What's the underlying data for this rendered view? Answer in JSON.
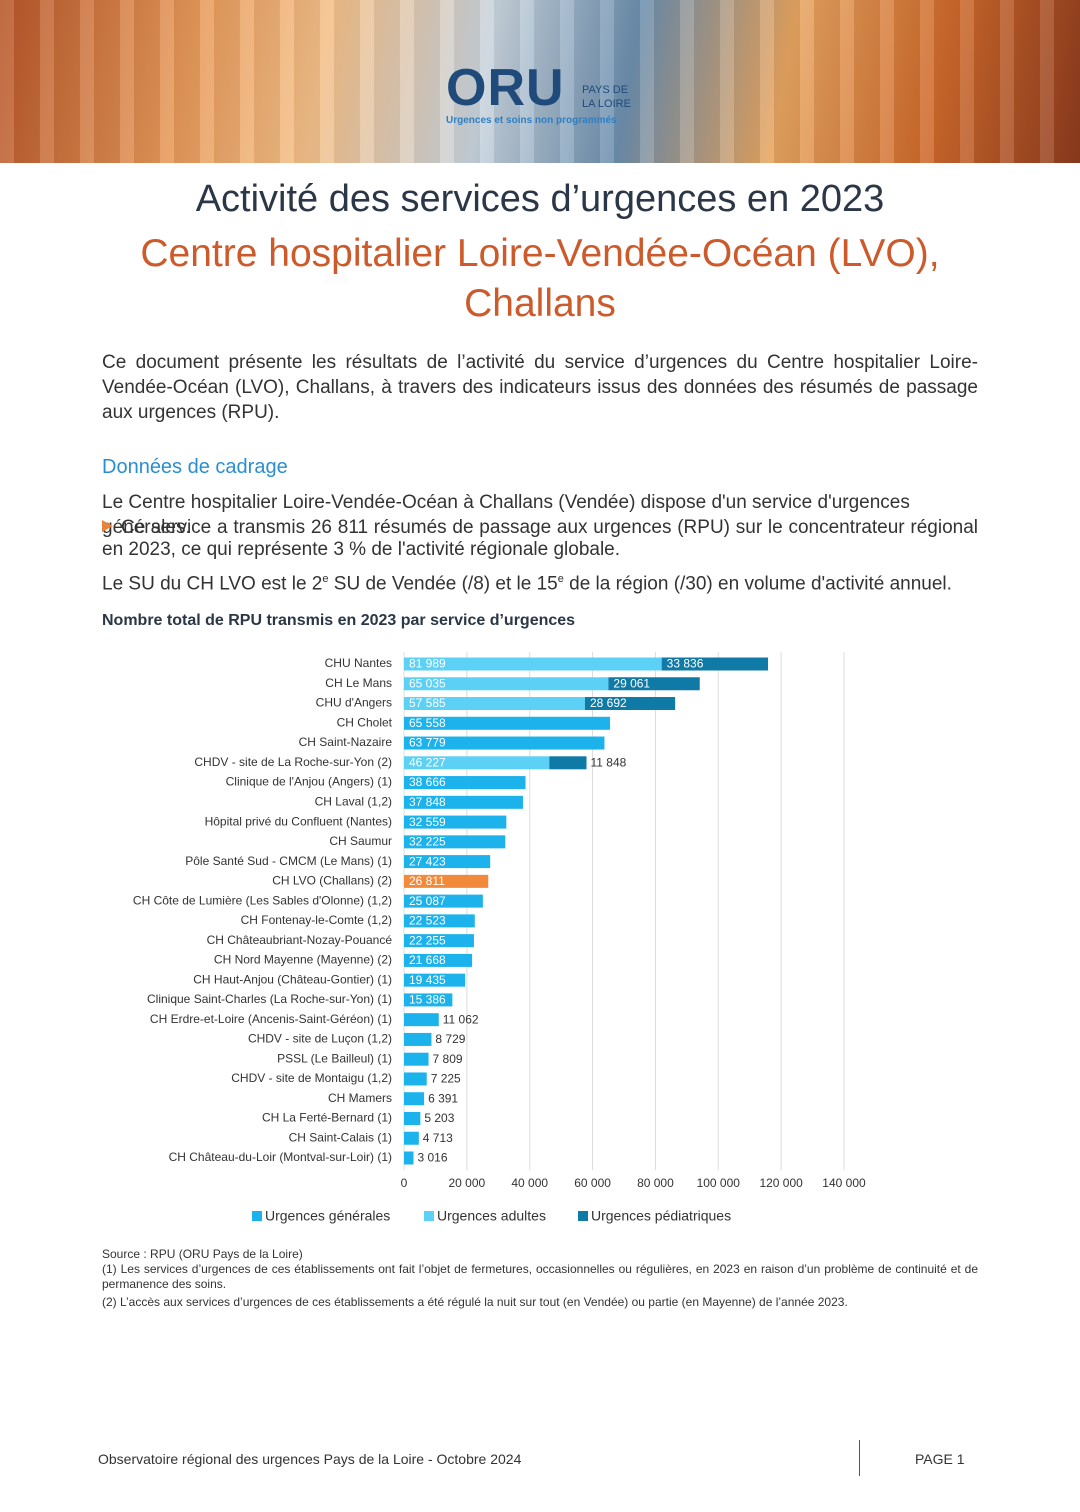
{
  "header": {
    "logo": "ORU",
    "logo_line1": "PAYS DE",
    "logo_line2": "LA LOIRE",
    "tagline": "Urgences et soins non programmés"
  },
  "title": "Activité des services d’urgences en 2023",
  "subtitle_line1": "Centre hospitalier Loire-Vendée-Océan (LVO),",
  "subtitle_line2": "Challans",
  "intro": "Ce document présente les résultats de l’activité du service d’urgences du Centre hospitalier Loire-Vendée-Océan (LVO), Challans, à travers des indicateurs issus des données des résumés de passage aux urgences (RPU).",
  "section_heading": "Données de cadrage",
  "paragraph_1": "Le Centre hospitalier Loire-Vendée-Océan à Challans (Vendée) dispose d'un service d'urgences générales.",
  "paragraph_2": "Ce service a transmis 26 811 résumés de passage aux urgences (RPU) sur le concentrateur régional en 2023, ce qui représente 3 % de l'activité régionale globale.",
  "paragraph_3": [
    "Le SU du CH LVO est le 2",
    "e",
    " SU de Vendée (/8) et le 15",
    "e",
    " de la région (/30) en volume d'activité annuel."
  ],
  "chart_data": {
    "type": "stacked-hbar",
    "title": "Nombre total de RPU transmis en 2023 par service d’urgences",
    "categories": [
      "CHU Nantes",
      "CH Le Mans",
      "CHU d'Angers",
      "CH Cholet",
      "CH Saint-Nazaire",
      "CHDV - site de La Roche-sur-Yon (2)",
      "Clinique de l'Anjou (Angers) (1)",
      "CH Laval (1,2)",
      "Hôpital privé du Confluent (Nantes)",
      "CH Saumur",
      "Pôle Santé Sud - CMCM (Le Mans) (1)",
      "CH LVO (Challans) (2)",
      "CH Côte de Lumière (Les Sables d'Olonne) (1,2)",
      "CH Fontenay-le-Comte (1,2)",
      "CH Châteaubriant-Nozay-Pouancé",
      "CH Nord Mayenne (Mayenne) (2)",
      "CH Haut-Anjou (Château-Gontier) (1)",
      "Clinique Saint-Charles (La Roche-sur-Yon) (1)",
      "CH Erdre-et-Loire (Ancenis-Saint-Géréon) (1)",
      "CHDV - site de Luçon (1,2)",
      "PSSL (Le Bailleul) (1)",
      "CHDV - site de Montaigu (1,2)",
      "CH Mamers",
      "CH La Ferté-Bernard (1)",
      "CH Saint-Calais (1)",
      "CH Château-du-Loir (Montval-sur-Loir) (1)"
    ],
    "series": [
      {
        "name": "Urgences générales",
        "color": "#1cb2ec",
        "values": [
          null,
          null,
          null,
          65558,
          63779,
          null,
          38666,
          37848,
          32559,
          32225,
          27423,
          26811,
          25087,
          22523,
          22255,
          21668,
          19435,
          15386,
          11062,
          8729,
          7809,
          7225,
          6391,
          5203,
          4713,
          3016
        ],
        "value_labels": [
          null,
          null,
          null,
          "65 558",
          "63 779",
          null,
          "38 666",
          "37 848",
          "32 559",
          "32 225",
          "27 423",
          "26 811",
          "25 087",
          "22 523",
          "22 255",
          "21 668",
          "19 435",
          "15 386",
          "11 062",
          "8 729",
          "7 809",
          "7 225",
          "6 391",
          "5 203",
          "4 713",
          "3 016"
        ]
      },
      {
        "name": "Urgences adultes",
        "color": "#5dd0f6",
        "values": [
          81989,
          65035,
          57585,
          null,
          null,
          46227,
          null,
          null,
          null,
          null,
          null,
          null,
          null,
          null,
          null,
          null,
          null,
          null,
          null,
          null,
          null,
          null,
          null,
          null,
          null,
          null
        ],
        "value_labels": [
          "81 989",
          "65 035",
          "57 585",
          null,
          null,
          "46 227",
          null,
          null,
          null,
          null,
          null,
          null,
          null,
          null,
          null,
          null,
          null,
          null,
          null,
          null,
          null,
          null,
          null,
          null,
          null,
          null
        ]
      },
      {
        "name": "Urgences pédiatriques",
        "color": "#0f7aa6",
        "values": [
          33836,
          29061,
          28692,
          null,
          null,
          11848,
          null,
          null,
          null,
          null,
          null,
          null,
          null,
          null,
          null,
          null,
          null,
          null,
          null,
          null,
          null,
          null,
          null,
          null,
          null,
          null
        ],
        "value_labels": [
          "33 836",
          "29 061",
          "28 692",
          null,
          null,
          "11 848",
          null,
          null,
          null,
          null,
          null,
          null,
          null,
          null,
          null,
          null,
          null,
          null,
          null,
          null,
          null,
          null,
          null,
          null,
          null,
          null
        ]
      }
    ],
    "highlight": {
      "category": "CH LVO (Challans) (2)",
      "color": "#f28a3c"
    },
    "xlim": [
      0,
      140000
    ],
    "xticks": [
      0,
      {
        "value": 20000,
        "label": "20 000"
      },
      {
        "value": 40000,
        "label": "40 000"
      },
      {
        "value": 60000,
        "label": "60 000"
      },
      {
        "value": 80000,
        "label": "80 000"
      },
      {
        "value": 100000,
        "label": "100 000"
      },
      {
        "value": 120000,
        "label": "120 000"
      },
      {
        "value": 140000,
        "label": "140 000"
      }
    ],
    "grid": true,
    "legend": "bottom"
  },
  "notes": {
    "source": "Source : RPU (ORU Pays de la Loire)",
    "note_1": "(1) Les services d’urgences de ces établissements ont fait l’objet de fermetures, occasionnelles ou régulières, en 2023 en raison d’un problème de continuité et de permanence des soins.",
    "note_2": "(2) L’accès aux services d’urgences de ces établissements a été régulé la nuit sur tout (en Vendée) ou partie (en Mayenne) de l’année 2023."
  },
  "footer": {
    "left": "Observatoire régional des urgences Pays de la Loire - Octobre 2024",
    "page": "PAGE 1"
  }
}
